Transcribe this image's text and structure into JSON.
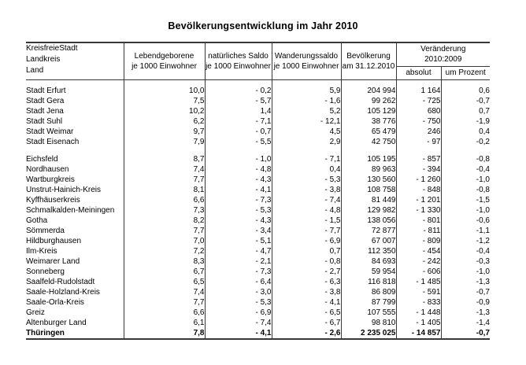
{
  "page": {
    "background": "#ffffff",
    "line_color": "#383838",
    "text_color": "#000000"
  },
  "title": "Bevölkerungsentwicklung im Jahr 2010",
  "table": {
    "row_header": {
      "lines": [
        "KreisfreieStadt",
        "Landkreis",
        "Land"
      ]
    },
    "columns": [
      {
        "label_line1": "Lebendgeborene",
        "label_line2": "je 1000 Einwohner"
      },
      {
        "label_line1": "natürliches Saldo",
        "label_line2": "je 1000 Einwohner"
      },
      {
        "label_line1": "Wanderungssaldo",
        "label_line2": "je 1000 Einwohner"
      },
      {
        "label_line1": "Bevölkerung",
        "label_line2": "am 31.12.2010"
      }
    ],
    "change_group": {
      "label_line1": "Veränderung",
      "label_line2": "2010:2009",
      "sub_columns": [
        "absolut",
        "um Prozent"
      ]
    },
    "sections": [
      {
        "name": "kreisfreie-staedte",
        "bold": false,
        "rows": [
          [
            "Stadt Erfurt",
            "10,0",
            "- 0,2",
            "5,9",
            "204 994",
            "1 164",
            "0,6"
          ],
          [
            "Stadt Gera",
            "7,5",
            "- 5,7",
            "- 1,6",
            "99 262",
            "- 725",
            "-0,7"
          ],
          [
            "Stadt Jena",
            "10,2",
            "1,4",
            "5,2",
            "105 129",
            "680",
            "0,7"
          ],
          [
            "Stadt Suhl",
            "6,2",
            "- 7,1",
            "- 12,1",
            "38 776",
            "- 750",
            "-1,9"
          ],
          [
            "Stadt Weimar",
            "9,7",
            "- 0,7",
            "4,5",
            "65 479",
            "246",
            "0,4"
          ],
          [
            "Stadt Eisenach",
            "7,9",
            "- 5,5",
            "2,9",
            "42 750",
            "- 97",
            "-0,2"
          ]
        ]
      },
      {
        "name": "landkreise",
        "bold": false,
        "rows": [
          [
            "Eichsfeld",
            "8,7",
            "- 1,0",
            "- 7,1",
            "105 195",
            "- 857",
            "-0,8"
          ],
          [
            "Nordhausen",
            "7,4",
            "- 4,8",
            "0,4",
            "89 963",
            "- 394",
            "-0,4"
          ],
          [
            "Wartburgkreis",
            "7,7",
            "- 4,3",
            "- 5,3",
            "130 560",
            "- 1 260",
            "-1,0"
          ],
          [
            "Unstrut-Hainich-Kreis",
            "8,1",
            "- 4,1",
            "- 3,8",
            "108 758",
            "- 848",
            "-0,8"
          ],
          [
            "Kyffhäuserkreis",
            "6,6",
            "- 7,3",
            "- 7,4",
            "81 449",
            "- 1 201",
            "-1,5"
          ],
          [
            "Schmalkalden-Meiningen",
            "7,3",
            "- 5,3",
            "- 4,8",
            "129 982",
            "- 1 330",
            "-1,0"
          ],
          [
            "Gotha",
            "8,2",
            "- 4,3",
            "- 1,5",
            "138 056",
            "- 801",
            "-0,6"
          ],
          [
            "Sömmerda",
            "7,7",
            "- 3,4",
            "- 7,7",
            "72 877",
            "- 811",
            "-1,1"
          ],
          [
            "Hildburghausen",
            "7,0",
            "- 5,1",
            "- 6,9",
            "67 007",
            "- 809",
            "-1,2"
          ],
          [
            "Ilm-Kreis",
            "7,2",
            "- 4,7",
            "0,7",
            "112 350",
            "- 454",
            "-0,4"
          ],
          [
            "Weimarer Land",
            "8,3",
            "- 2,1",
            "- 0,8",
            "84 693",
            "- 242",
            "-0,3"
          ],
          [
            "Sonneberg",
            "6,7",
            "- 7,3",
            "- 2,7",
            "59 954",
            "- 606",
            "-1,0"
          ],
          [
            "Saalfeld-Rudolstadt",
            "6,5",
            "- 6,4",
            "- 6,3",
            "116 818",
            "- 1 485",
            "-1,3"
          ],
          [
            "Saale-Holzland-Kreis",
            "7,4",
            "- 3,0",
            "- 3,8",
            "86 809",
            "- 591",
            "-0,7"
          ],
          [
            "Saale-Orla-Kreis",
            "7,7",
            "- 5,3",
            "- 4,1",
            "87 799",
            "- 833",
            "-0,9"
          ],
          [
            "Greiz",
            "6,6",
            "- 6,9",
            "- 6,5",
            "107 555",
            "- 1 448",
            "-1,3"
          ],
          [
            "Altenburger Land",
            "6,1",
            "- 7,4",
            "- 6,7",
            "98 810",
            "- 1 405",
            "-1,4"
          ]
        ]
      },
      {
        "name": "land-gesamt",
        "bold": true,
        "rows": [
          [
            "Thüringen",
            "7,8",
            "- 4,1",
            "- 2,6",
            "2 235 025",
            "- 14 857",
            "-0,7"
          ]
        ]
      }
    ]
  }
}
